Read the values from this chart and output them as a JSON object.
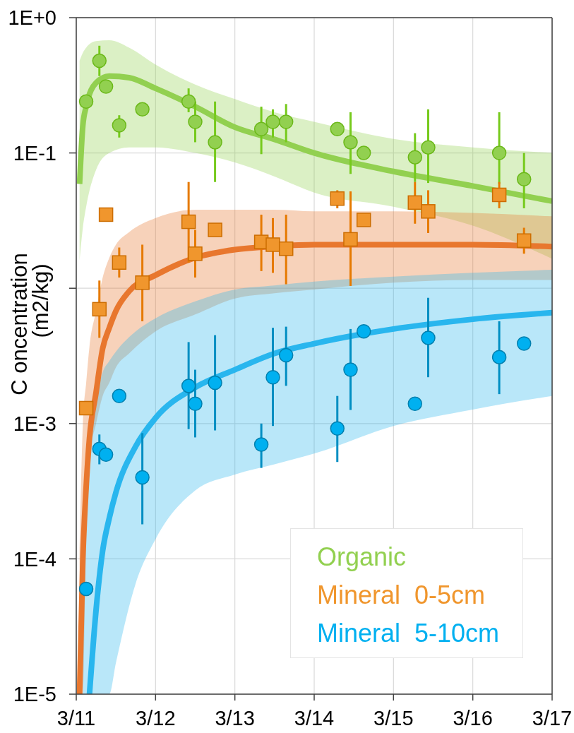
{
  "chart_data": {
    "type": "scatter",
    "ylabel": "C oncentration\n(m2/kg)",
    "log": true,
    "grid": true,
    "legend": "bottom right",
    "xlim": [
      "--03-11",
      "--03-17"
    ],
    "xticks": [
      {
        "value": "--03-11",
        "label": "3/11"
      },
      {
        "value": "--03-12",
        "label": "3/12"
      },
      {
        "value": "--03-13",
        "label": "3/13"
      },
      {
        "value": "--03-14",
        "label": "3/14"
      },
      {
        "value": "--03-15",
        "label": "3/15"
      },
      {
        "value": "--03-16",
        "label": "3/16"
      },
      {
        "value": "--03-17",
        "label": "3/17"
      }
    ],
    "ylim": [
      1e-05,
      1
    ],
    "yticks": [
      {
        "value": 1,
        "label": "1E+0"
      },
      {
        "value": 0.1,
        "label": "1E-1"
      },
      {
        "value": 0.01,
        "label": null
      },
      {
        "value": 0.001,
        "label": "1E-3"
      },
      {
        "value": 0.0001,
        "label": "1E-4"
      },
      {
        "value": 1e-05,
        "label": "1E-5"
      }
    ],
    "x": [
      "--03-11T03:00",
      "--03-11T07:00",
      "--03-11T09:00",
      "--03-11T13:00",
      "--03-11T20:00",
      "--03-12T10:00",
      "--03-12T12:00",
      "--03-12T18:00",
      "--03-13T08:00",
      "--03-13T11:30",
      "--03-13T15:30",
      "--03-14T07:00",
      "--03-14T11:00",
      "--03-14T15:00",
      "--03-15T06:30",
      "--03-15T10:30",
      "--03-16T08:00",
      "--03-16T15:30"
    ],
    "series": [
      {
        "name": "Organic",
        "marker": "circle",
        "color": "#92d050",
        "values": [
          0.24,
          0.48,
          0.31,
          0.16,
          0.21,
          0.24,
          0.17,
          0.12,
          0.15,
          0.17,
          0.17,
          0.15,
          0.12,
          0.1,
          0.093,
          0.11,
          0.1,
          0.064
        ],
        "errors": [
          null,
          [
            0.37,
            0.62
          ],
          null,
          [
            0.13,
            0.19
          ],
          null,
          [
            0.2,
            0.3
          ],
          [
            0.12,
            0.24
          ],
          [
            0.061,
            0.24
          ],
          [
            0.098,
            0.22
          ],
          [
            0.13,
            0.21
          ],
          [
            0.12,
            0.23
          ],
          null,
          [
            0.07,
            0.2
          ],
          null,
          [
            0.061,
            0.14
          ],
          [
            0.06,
            0.21
          ],
          [
            0.059,
            0.2
          ],
          [
            0.039,
            0.1
          ]
        ]
      },
      {
        "name": "Mineral  0-5cm",
        "marker": "square",
        "color": "#f0962d",
        "values": [
          0.0013,
          0.007,
          0.035,
          0.0155,
          0.011,
          0.031,
          0.018,
          0.027,
          0.022,
          0.021,
          0.0196,
          0.046,
          0.023,
          0.032,
          0.043,
          0.037,
          0.049,
          0.0225
        ],
        "errors": [
          null,
          [
            0.0043,
            0.0114
          ],
          null,
          [
            0.012,
            0.02
          ],
          [
            0.0057,
            0.021
          ],
          [
            0.0155,
            0.061
          ],
          [
            0.012,
            0.027
          ],
          null,
          [
            0.0134,
            0.035
          ],
          [
            0.013,
            0.033
          ],
          [
            0.0107,
            0.035
          ],
          [
            0.039,
            0.053
          ],
          [
            0.0104,
            0.052
          ],
          null,
          [
            0.03,
            0.061
          ],
          [
            0.0256,
            0.053
          ],
          [
            0.039,
            0.061
          ],
          [
            0.018,
            0.028
          ]
        ]
      },
      {
        "name": "Mineral  5-10cm",
        "marker": "circle",
        "color": "#00b0f0",
        "values": [
          6e-05,
          0.00065,
          0.00059,
          0.0016,
          0.0004,
          0.0019,
          0.0014,
          0.002,
          0.0007,
          0.0022,
          0.0032,
          0.00092,
          0.0025,
          0.0048,
          0.0014,
          0.0043,
          0.0031,
          0.0039
        ],
        "errors": [
          null,
          [
            0.0005,
            0.00083
          ],
          null,
          null,
          [
            0.00018,
            0.00085
          ],
          [
            0.00091,
            0.004
          ],
          [
            0.00079,
            0.0025
          ],
          [
            0.00089,
            0.0045
          ],
          [
            0.00047,
            0.001
          ],
          [
            0.00096,
            0.0051
          ],
          [
            0.0019,
            0.0052
          ],
          [
            0.00052,
            0.0016
          ],
          [
            0.00126,
            0.005
          ],
          null,
          null,
          [
            0.0022,
            0.0085
          ],
          [
            0.00165,
            0.0057
          ],
          null
        ]
      },
      {
        "type": "line",
        "color": "#92d050",
        "x": [
          "--03-11T01:00",
          "--03-11T02:00",
          "--03-11T03:00",
          "--03-11T06:00",
          "--03-11T10:00",
          "--03-11T16:00",
          "--03-12T00:00",
          "--03-12T12:00",
          "--03-13T00:00",
          "--03-13T12:00",
          "--03-14T00:00",
          "--03-15T00:00",
          "--03-16T00:00",
          "--03-17T00:00"
        ],
        "values": [
          0.059,
          0.16,
          0.22,
          0.33,
          0.37,
          0.36,
          0.3,
          0.22,
          0.155,
          0.126,
          0.1,
          0.073,
          0.057,
          0.044
        ],
        "lower": [
          0.016,
          0.028,
          0.04,
          0.075,
          0.1,
          0.11,
          0.11,
          0.1,
          0.085,
          0.067,
          0.051,
          0.04,
          0.029,
          0.0165
        ],
        "upper": [
          0.48,
          0.55,
          0.6,
          0.67,
          0.68,
          0.6,
          0.45,
          0.32,
          0.25,
          0.2,
          0.17,
          0.127,
          0.11,
          0.1
        ]
      },
      {
        "type": "line",
        "color": "#e8772e",
        "x": [
          "--03-11T01:00",
          "--03-11T02:00",
          "--03-11T03:00",
          "--03-11T04:00",
          "--03-11T06:00",
          "--03-11T08:00",
          "--03-11T10:00",
          "--03-11T12:00",
          "--03-11T16:00",
          "--03-12T00:00",
          "--03-12T12:00",
          "--03-13T00:00",
          "--03-13T12:00",
          "--03-14T00:00",
          "--03-15T00:00",
          "--03-16T00:00",
          "--03-17T00:00"
        ],
        "values": [
          1e-05,
          0.0001,
          0.00034,
          0.00078,
          0.0017,
          0.0036,
          0.0051,
          0.0068,
          0.0095,
          0.0125,
          0.0168,
          0.0193,
          0.0204,
          0.021,
          0.021,
          0.021,
          0.0203
        ],
        "lower": [
          1e-05,
          1e-05,
          0.00017,
          0.00055,
          0.001,
          0.0016,
          0.002,
          0.0026,
          0.0033,
          0.0048,
          0.0064,
          0.0084,
          0.0092,
          0.0098,
          0.011,
          0.0115,
          0.0115
        ],
        "upper": [
          0.00012,
          0.001,
          0.002,
          0.0037,
          0.0068,
          0.012,
          0.0168,
          0.021,
          0.026,
          0.033,
          0.038,
          0.038,
          0.038,
          0.037,
          0.037,
          0.036,
          0.034
        ]
      },
      {
        "type": "line",
        "color": "#29b6ee",
        "x": [
          "--03-11T02:00",
          "--03-11T03:00",
          "--03-11T04:00",
          "--03-11T06:00",
          "--03-11T08:00",
          "--03-11T10:00",
          "--03-11T12:00",
          "--03-11T18:00",
          "--03-12T00:00",
          "--03-12T12:00",
          "--03-13T00:00",
          "--03-13T12:00",
          "--03-14T00:00",
          "--03-15T00:00",
          "--03-16T00:00",
          "--03-17T00:00"
        ],
        "values": [
          null,
          null,
          1e-05,
          4.2e-05,
          0.000115,
          0.0002,
          0.00031,
          0.00068,
          0.0011,
          0.00185,
          0.0025,
          0.0033,
          0.0039,
          0.005,
          0.0059,
          0.0066
        ],
        "lower": [
          1e-05,
          1e-05,
          1e-05,
          1e-05,
          1e-05,
          1e-05,
          1.7e-05,
          6.6e-05,
          0.00014,
          0.00032,
          0.00042,
          0.0005,
          0.0006,
          0.00096,
          0.00127,
          0.0016
        ],
        "upper": [
          2.7e-05,
          0.00034,
          0.00068,
          0.0015,
          0.0024,
          0.0029,
          0.0034,
          0.0048,
          0.006,
          0.008,
          0.0098,
          0.0105,
          0.0112,
          0.0122,
          0.013,
          0.0137
        ]
      }
    ]
  }
}
